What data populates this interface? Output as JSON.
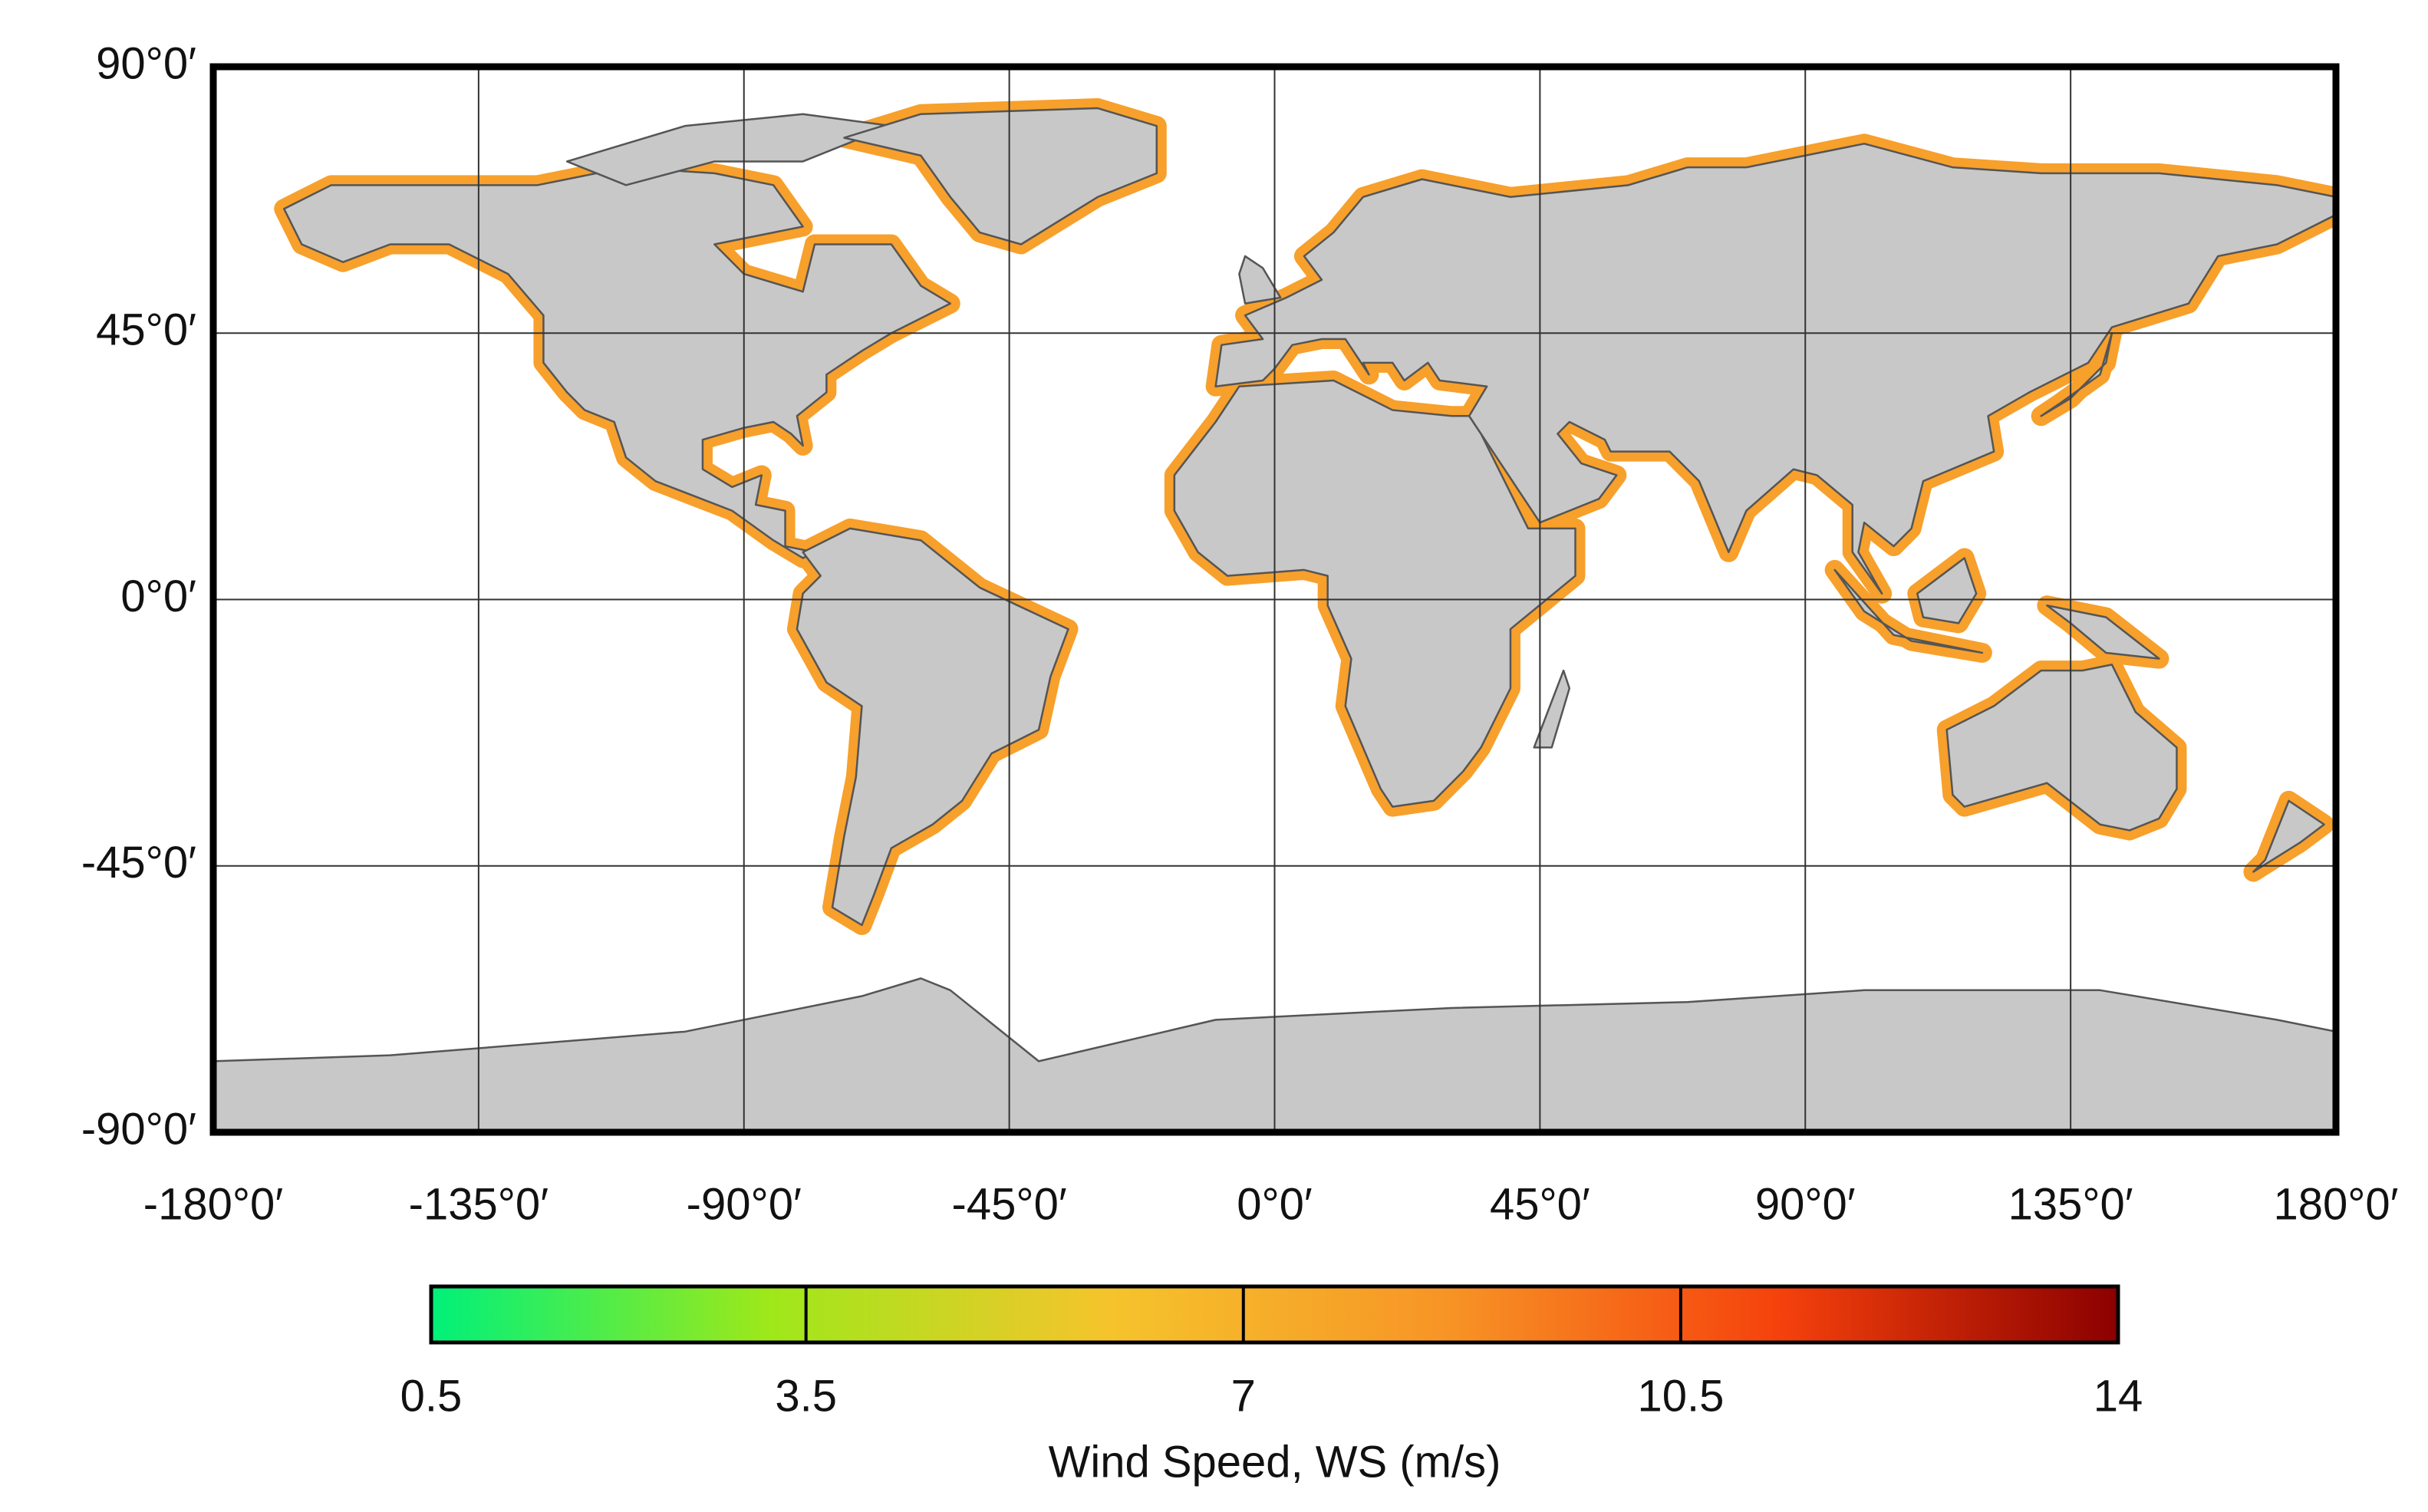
{
  "map": {
    "xlim": [
      -180,
      180
    ],
    "ylim": [
      -90,
      90
    ],
    "xticks": [
      {
        "value": -180,
        "label": "-180°0′"
      },
      {
        "value": -135,
        "label": "-135°0′"
      },
      {
        "value": -90,
        "label": "-90°0′"
      },
      {
        "value": -45,
        "label": "-45°0′"
      },
      {
        "value": 0,
        "label": "0°0′"
      },
      {
        "value": 45,
        "label": "45°0′"
      },
      {
        "value": 90,
        "label": "90°0′"
      },
      {
        "value": 135,
        "label": "135°0′"
      },
      {
        "value": 180,
        "label": "180°0′"
      }
    ],
    "yticks": [
      {
        "value": -90,
        "label": "-90°0′"
      },
      {
        "value": -45,
        "label": "-45°0′"
      },
      {
        "value": 0,
        "label": "0°0′"
      },
      {
        "value": 45,
        "label": "45°0′"
      },
      {
        "value": 90,
        "label": "90°0′"
      }
    ],
    "grid": true,
    "colorbar": {
      "label": "Wind Speed, WS (m/s)",
      "lim": [
        0.5,
        14
      ],
      "ticks": [
        0.5,
        3.5,
        7,
        10.5,
        14
      ],
      "colors": [
        "#00f07a",
        "#9ee81a",
        "#f5c42c",
        "#f79526",
        "#f5410c",
        "#8b0000"
      ]
    }
  }
}
